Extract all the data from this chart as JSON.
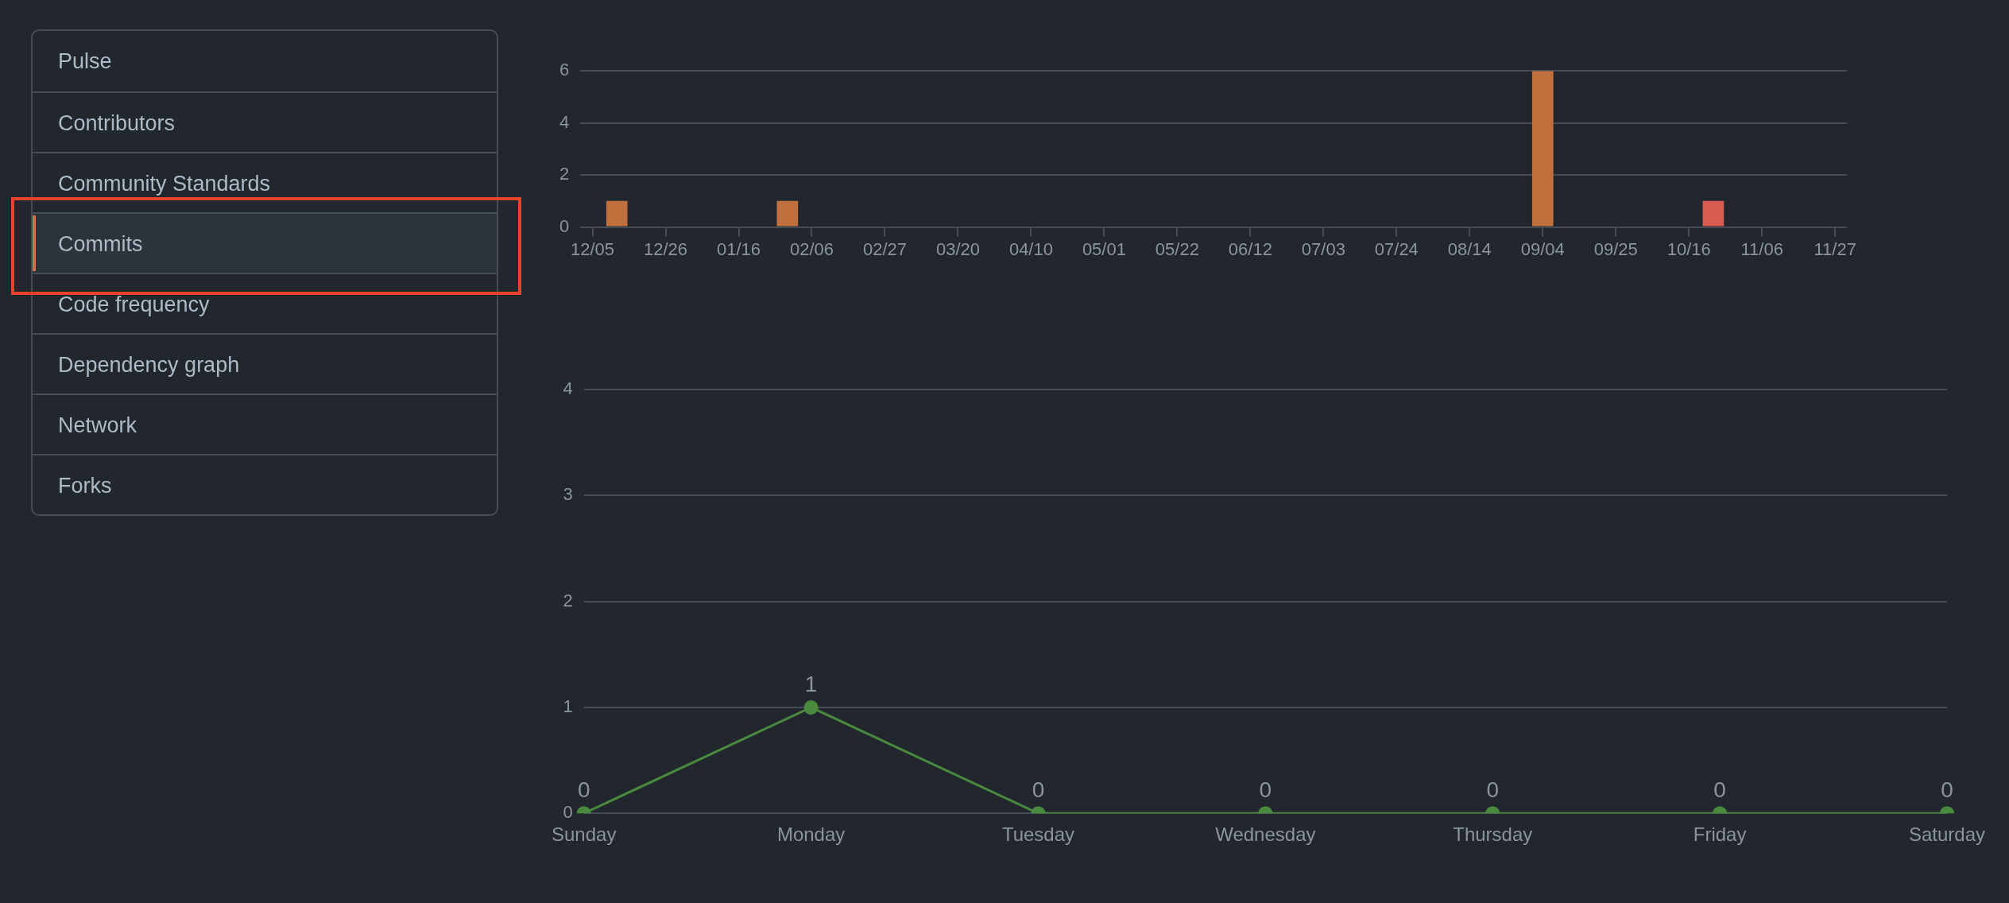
{
  "chart_data": [
    {
      "type": "other",
      "annotations": [
        "Pulse",
        "Contributors",
        "Community Standards",
        "Commits",
        "Code frequency",
        "Dependency graph",
        "Network",
        "Forks"
      ]
    },
    {
      "type": "bar",
      "categories": [
        "12/05",
        null,
        null,
        "12/26",
        null,
        null,
        "01/16",
        null,
        null,
        "02/06",
        null,
        null,
        "02/27",
        null,
        null,
        "03/20",
        null,
        null,
        "04/10",
        null,
        null,
        "05/01",
        null,
        null,
        "05/22",
        null,
        null,
        "06/12",
        null,
        null,
        "07/03",
        null,
        null,
        "07/24",
        null,
        null,
        "08/14",
        null,
        null,
        "09/04",
        null,
        null,
        "09/25",
        null,
        null,
        "10/16",
        null,
        null,
        "11/06",
        null,
        null,
        "11/27"
      ],
      "values": [
        0,
        1,
        0,
        0,
        0,
        0,
        0,
        0,
        1,
        0,
        0,
        0,
        0,
        0,
        0,
        0,
        0,
        0,
        0,
        0,
        0,
        0,
        0,
        0,
        0,
        0,
        0,
        0,
        0,
        0,
        0,
        0,
        0,
        0,
        0,
        0,
        0,
        0,
        0,
        6,
        0,
        0,
        0,
        0,
        0,
        0,
        1,
        0,
        0,
        0,
        0,
        0
      ],
      "colors": [
        "#c0703c",
        "#c0703c",
        "#c0703c",
        "#c0703c",
        "#c0703c",
        "#c0703c",
        "#c0703c",
        "#c0703c",
        "#c0703c",
        "#c0703c",
        "#c0703c",
        "#c0703c",
        "#c0703c",
        "#c0703c",
        "#c0703c",
        "#c0703c",
        "#c0703c",
        "#c0703c",
        "#c0703c",
        "#c0703c",
        "#c0703c",
        "#c0703c",
        "#c0703c",
        "#c0703c",
        "#c0703c",
        "#c0703c",
        "#c0703c",
        "#c0703c",
        "#c0703c",
        "#c0703c",
        "#c0703c",
        "#c0703c",
        "#c0703c",
        "#c0703c",
        "#c0703c",
        "#c0703c",
        "#c0703c",
        "#c0703c",
        "#c0703c",
        "#c0703c",
        "#c0703c",
        "#c0703c",
        "#c0703c",
        "#c0703c",
        "#c0703c",
        "#c0703c",
        "#d95c50",
        "#c0703c",
        "#c0703c",
        "#c0703c",
        "#c0703c",
        "#c0703c"
      ],
      "ylim": [
        0,
        6
      ],
      "yticks": [
        0,
        2,
        4,
        6
      ],
      "grid": "y"
    },
    {
      "type": "line",
      "categories": [
        "Sunday",
        "Monday",
        "Tuesday",
        "Wednesday",
        "Thursday",
        "Friday",
        "Saturday"
      ],
      "values": [
        0,
        1,
        0,
        0,
        0,
        0,
        0
      ],
      "color": "#4a8a3f",
      "marker": "circle",
      "data_labels": true,
      "ylim": [
        0,
        4
      ],
      "yticks": [
        0,
        1,
        2,
        3,
        4
      ],
      "grid": "y"
    }
  ]
}
